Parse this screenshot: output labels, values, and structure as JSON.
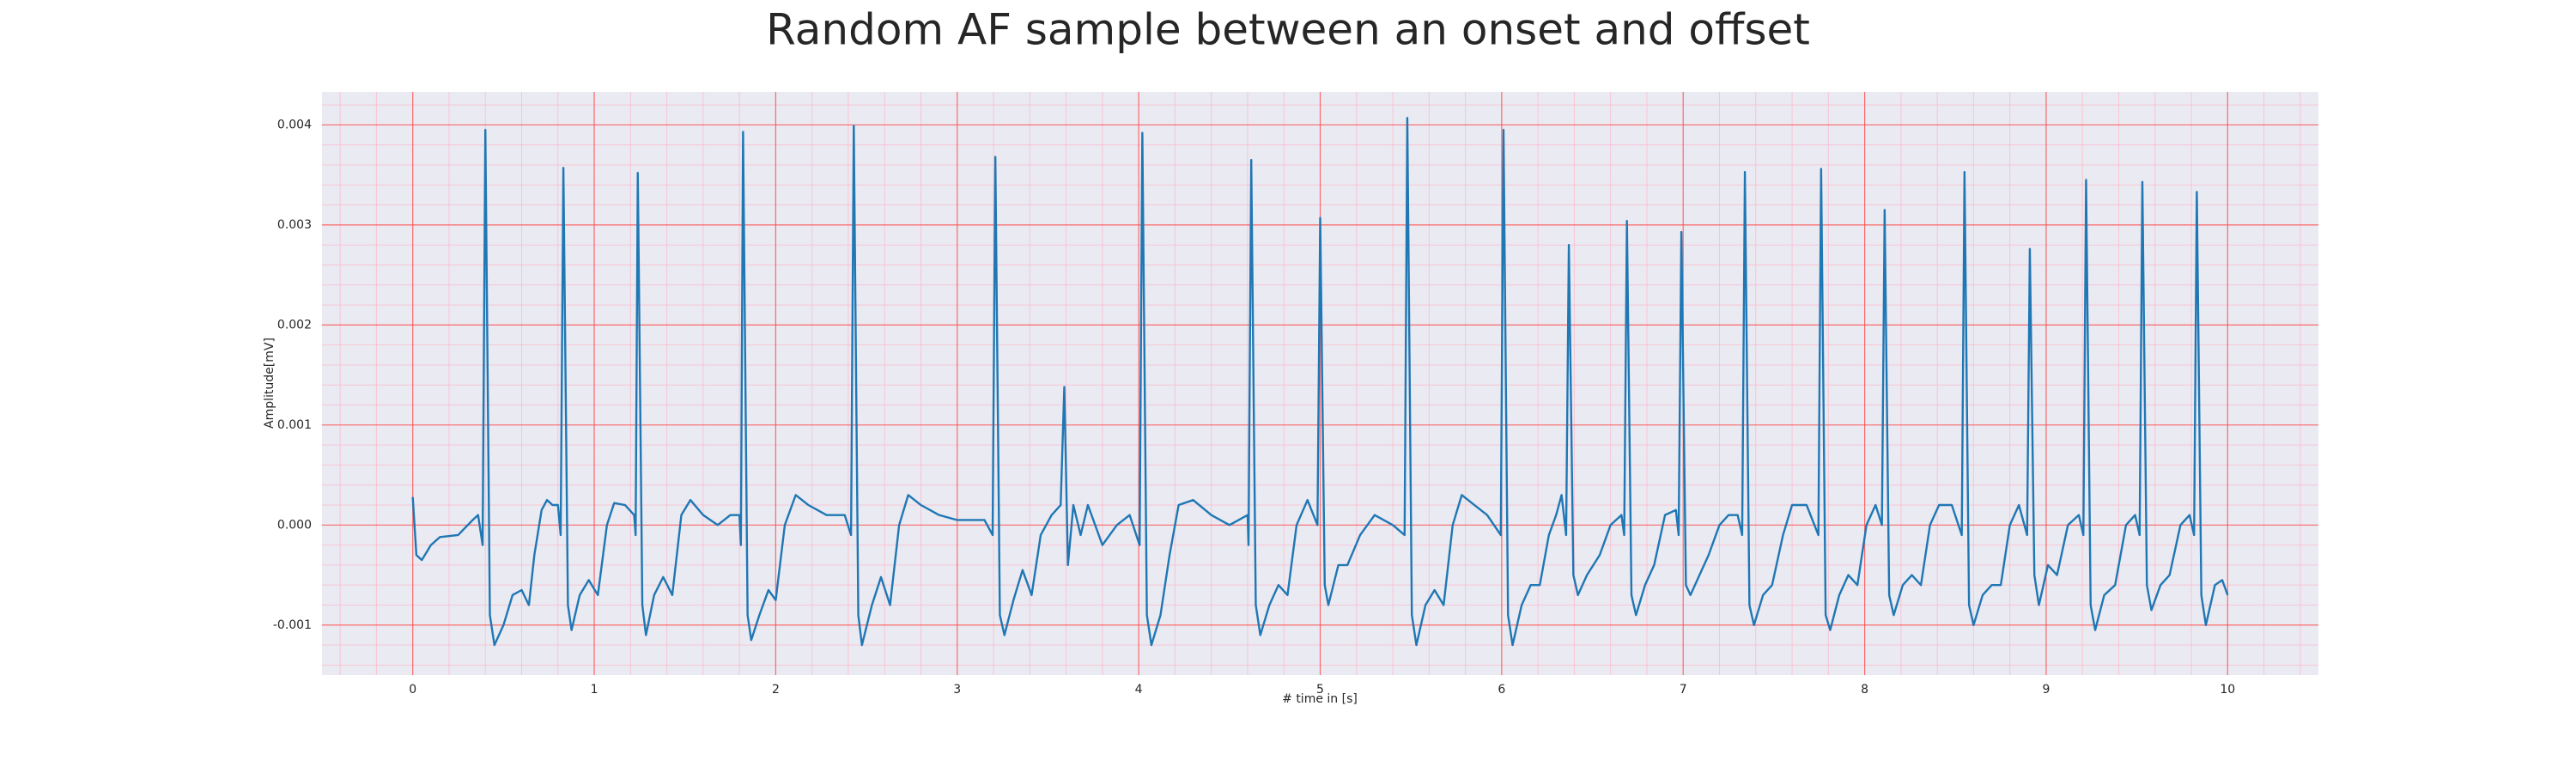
{
  "chart_data": {
    "type": "line",
    "title": "Random AF sample between an onset and offset",
    "xlabel": "# time in [s]",
    "ylabel": "Amplitude[mV]",
    "color": "#1f77b4",
    "grid": true,
    "xlim": [
      -0.5,
      10.5
    ],
    "ylim": [
      -0.0015,
      0.00433
    ],
    "xticks": [
      0,
      1,
      2,
      3,
      4,
      5,
      6,
      7,
      8,
      9,
      10
    ],
    "yticks": [
      -0.001,
      {
        "value": 0,
        "label": "0.000"
      },
      0.001,
      0.002,
      0.003,
      0.004
    ],
    "x": [
      0,
      0.02,
      0.05,
      0.1,
      0.15,
      0.25,
      0.33,
      0.36,
      0.385,
      0.4,
      0.425,
      0.45,
      0.5,
      0.55,
      0.6,
      0.64,
      0.67,
      0.71,
      0.74,
      0.77,
      0.8,
      0.815,
      0.83,
      0.855,
      0.875,
      0.92,
      0.97,
      1.02,
      1.07,
      1.11,
      1.17,
      1.22,
      1.228,
      1.24,
      1.265,
      1.285,
      1.33,
      1.38,
      1.43,
      1.48,
      1.53,
      1.6,
      1.68,
      1.75,
      1.8,
      1.808,
      1.82,
      1.845,
      1.865,
      1.91,
      1.96,
      2.0,
      2.05,
      2.11,
      2.18,
      2.28,
      2.38,
      2.415,
      2.43,
      2.455,
      2.475,
      2.53,
      2.58,
      2.63,
      2.68,
      2.73,
      2.8,
      2.9,
      3.0,
      3.15,
      3.195,
      3.21,
      3.235,
      3.26,
      3.31,
      3.36,
      3.41,
      3.46,
      3.52,
      3.57,
      3.59,
      3.61,
      3.64,
      3.68,
      3.72,
      3.8,
      3.88,
      3.95,
      4.005,
      4.02,
      4.045,
      4.07,
      4.12,
      4.17,
      4.22,
      4.3,
      4.4,
      4.5,
      4.6,
      4.605,
      4.62,
      4.645,
      4.67,
      4.72,
      4.77,
      4.82,
      4.87,
      4.93,
      4.985,
      5.0,
      5.025,
      5.045,
      5.1,
      5.15,
      5.22,
      5.3,
      5.4,
      5.465,
      5.48,
      5.505,
      5.53,
      5.58,
      5.63,
      5.68,
      5.73,
      5.78,
      5.85,
      5.92,
      5.995,
      6.01,
      6.035,
      6.06,
      6.11,
      6.16,
      6.21,
      6.26,
      6.3,
      6.33,
      6.355,
      6.37,
      6.395,
      6.42,
      6.47,
      6.54,
      6.6,
      6.66,
      6.675,
      6.69,
      6.715,
      6.74,
      6.79,
      6.84,
      6.9,
      6.96,
      6.975,
      6.99,
      7.015,
      7.04,
      7.09,
      7.14,
      7.2,
      7.25,
      7.3,
      7.325,
      7.34,
      7.365,
      7.39,
      7.44,
      7.49,
      7.55,
      7.6,
      7.68,
      7.745,
      7.76,
      7.785,
      7.81,
      7.86,
      7.91,
      7.96,
      8.01,
      8.06,
      8.095,
      8.11,
      8.135,
      8.16,
      8.21,
      8.26,
      8.31,
      8.36,
      8.41,
      8.48,
      8.535,
      8.55,
      8.575,
      8.6,
      8.65,
      8.7,
      8.75,
      8.8,
      8.85,
      8.895,
      8.91,
      8.935,
      8.96,
      9.01,
      9.06,
      9.12,
      9.18,
      9.205,
      9.22,
      9.245,
      9.27,
      9.32,
      9.38,
      9.44,
      9.49,
      9.515,
      9.53,
      9.555,
      9.58,
      9.63,
      9.68,
      9.74,
      9.79,
      9.815,
      9.83,
      9.855,
      9.88,
      9.93,
      9.97,
      10.0
    ],
    "values": [
      0.00028,
      -0.0003,
      -0.00035,
      -0.0002,
      -0.00012,
      -0.0001,
      5e-05,
      0.0001,
      -0.0002,
      0.00395,
      -0.0009,
      -0.0012,
      -0.001,
      -0.0007,
      -0.00065,
      -0.0008,
      -0.0003,
      0.00015,
      0.00025,
      0.0002,
      0.0002,
      -0.0001,
      0.00357,
      -0.0008,
      -0.00105,
      -0.0007,
      -0.00055,
      -0.0007,
      0,
      0.00022,
      0.0002,
      0.0001,
      -0.0001,
      0.00352,
      -0.0008,
      -0.0011,
      -0.0007,
      -0.00052,
      -0.0007,
      0.0001,
      0.00025,
      0.0001,
      0,
      0.0001,
      0.0001,
      -0.0002,
      0.00393,
      -0.0009,
      -0.00115,
      -0.0009,
      -0.00065,
      -0.00075,
      0,
      0.0003,
      0.0002,
      0.0001,
      0.0001,
      -0.0001,
      0.00399,
      -0.0009,
      -0.0012,
      -0.0008,
      -0.00052,
      -0.0008,
      0,
      0.0003,
      0.0002,
      0.0001,
      5e-05,
      5e-05,
      -0.0001,
      0.00368,
      -0.0009,
      -0.0011,
      -0.00075,
      -0.00045,
      -0.0007,
      -0.0001,
      0.0001,
      0.0002,
      0.00138,
      -0.0004,
      0.0002,
      -0.0001,
      0.0002,
      -0.0002,
      0,
      0.0001,
      -0.0002,
      0.00392,
      -0.0009,
      -0.0012,
      -0.0009,
      -0.0003,
      0.0002,
      0.00025,
      0.0001,
      0,
      0.0001,
      -0.0002,
      0.00365,
      -0.0008,
      -0.0011,
      -0.0008,
      -0.0006,
      -0.0007,
      0,
      0.00025,
      0,
      0.00307,
      -0.0006,
      -0.0008,
      -0.0004,
      -0.0004,
      -0.0001,
      0.0001,
      0,
      -0.0001,
      0.00407,
      -0.0009,
      -0.0012,
      -0.0008,
      -0.00065,
      -0.0008,
      0,
      0.0003,
      0.0002,
      0.0001,
      -0.0001,
      0.00395,
      -0.0009,
      -0.0012,
      -0.0008,
      -0.0006,
      -0.0006,
      -0.0001,
      0.0001,
      0.0003,
      -0.0001,
      0.0028,
      -0.0005,
      -0.0007,
      -0.0005,
      -0.0003,
      0,
      0.0001,
      -0.0001,
      0.00304,
      -0.0007,
      -0.0009,
      -0.0006,
      -0.0004,
      0.0001,
      0.00015,
      -0.0001,
      0.00293,
      -0.0006,
      -0.0007,
      -0.0005,
      -0.0003,
      0,
      0.0001,
      0.0001,
      -0.0001,
      0.00353,
      -0.0008,
      -0.001,
      -0.0007,
      -0.0006,
      -0.0001,
      0.0002,
      0.0002,
      -0.0001,
      0.00356,
      -0.0009,
      -0.00105,
      -0.0007,
      -0.0005,
      -0.0006,
      0,
      0.0002,
      0,
      0.00315,
      -0.0007,
      -0.0009,
      -0.0006,
      -0.0005,
      -0.0006,
      0,
      0.0002,
      0.0002,
      -0.0001,
      0.00353,
      -0.0008,
      -0.001,
      -0.0007,
      -0.0006,
      -0.0006,
      0,
      0.0002,
      -0.0001,
      0.00276,
      -0.0005,
      -0.0008,
      -0.0004,
      -0.0005,
      0,
      0.0001,
      -0.0001,
      0.00345,
      -0.0008,
      -0.00105,
      -0.0007,
      -0.0006,
      0,
      0.0001,
      -0.0001,
      0.00343,
      -0.0006,
      -0.00085,
      -0.0006,
      -0.0005,
      0,
      0.0001,
      -0.0001,
      0.00333,
      -0.0007,
      -0.001,
      -0.0006,
      -0.00055,
      -0.0007
    ]
  }
}
